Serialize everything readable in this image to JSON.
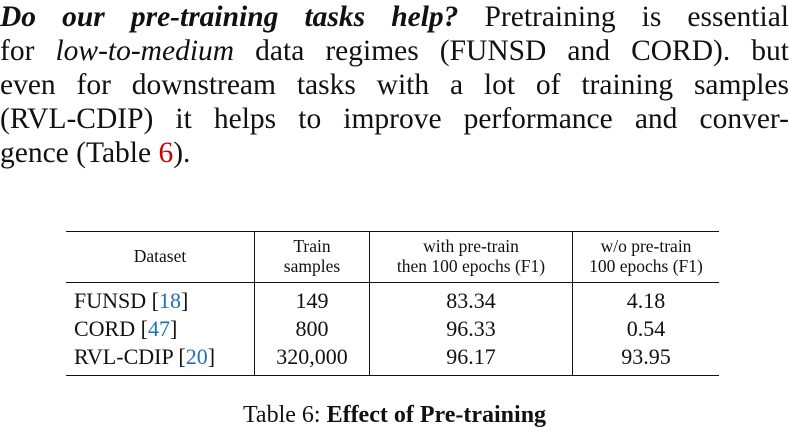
{
  "paragraph": {
    "lead": "Do our pre-training tasks help?",
    "line1_rest": " Pretraining is essential",
    "line2_pre": "for ",
    "line2_italic": "low-to-medium",
    "line2_rest": " data regimes (FUNSD and CORD). but",
    "line3": "even for downstream tasks with a lot of training samples",
    "line4": "(RVL-CDIP) it helps to improve performance and conver-",
    "line5_pre": "gence (Table ",
    "line5_ref": "6",
    "line5_post": ")."
  },
  "table": {
    "headers": {
      "dataset": "Dataset",
      "train_line1": "Train",
      "train_line2": "samples",
      "with_line1": "with pre-train",
      "with_line2": "then 100 epochs (F1)",
      "wo_line1": "w/o pre-train",
      "wo_line2": "100 epochs (F1)"
    },
    "rows": [
      {
        "dataset": "FUNSD",
        "cite": "18",
        "samples": "149",
        "with": "83.34",
        "without": "4.18"
      },
      {
        "dataset": "CORD",
        "cite": "47",
        "samples": "800",
        "with": "96.33",
        "without": "0.54"
      },
      {
        "dataset": "RVL-CDIP",
        "cite": "20",
        "samples": "320,000",
        "with": "96.17",
        "without": "93.95"
      }
    ]
  },
  "caption": {
    "label": "Table 6: ",
    "title": "Effect of Pre-training"
  }
}
